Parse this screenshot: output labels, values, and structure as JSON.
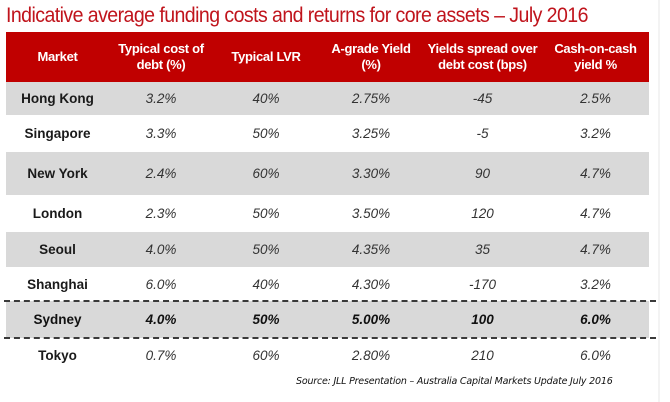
{
  "title": "Indicative average funding costs and returns for core assets – July 2016",
  "table": {
    "headers": [
      "Market",
      "Typical cost of debt (%)",
      "Typical LVR",
      "A-grade Yield (%)",
      "Yields spread over debt cost (bps)",
      "Cash-on-cash yield %"
    ],
    "rows": [
      {
        "market": "Hong Kong",
        "cost_of_debt": "3.2%",
        "lvr": "40%",
        "yield": "2.75%",
        "spread": "-45",
        "cash_on_cash": "2.5%"
      },
      {
        "market": "Singapore",
        "cost_of_debt": "3.3%",
        "lvr": "50%",
        "yield": "3.25%",
        "spread": "-5",
        "cash_on_cash": "3.2%"
      },
      {
        "market": "New York",
        "cost_of_debt": "2.4%",
        "lvr": "60%",
        "yield": "3.30%",
        "spread": "90",
        "cash_on_cash": "4.7%"
      },
      {
        "market": "London",
        "cost_of_debt": "2.3%",
        "lvr": "50%",
        "yield": "3.50%",
        "spread": "120",
        "cash_on_cash": "4.7%"
      },
      {
        "market": "Seoul",
        "cost_of_debt": "4.0%",
        "lvr": "50%",
        "yield": "4.35%",
        "spread": "35",
        "cash_on_cash": "4.7%"
      },
      {
        "market": "Shanghai",
        "cost_of_debt": "6.0%",
        "lvr": "40%",
        "yield": "4.30%",
        "spread": "-170",
        "cash_on_cash": "3.2%"
      },
      {
        "market": "Sydney",
        "cost_of_debt": "4.0%",
        "lvr": "50%",
        "yield": "5.00%",
        "spread": "100",
        "cash_on_cash": "6.0%",
        "highlighted": true
      },
      {
        "market": "Tokyo",
        "cost_of_debt": "0.7%",
        "lvr": "60%",
        "yield": "2.80%",
        "spread": "210",
        "cash_on_cash": "6.0%"
      }
    ]
  },
  "source": "Source: JLL Presentation – Australia Capital Markets Update July 2016",
  "colors": {
    "header_bg": "#c00000",
    "title_text": "#c0141c",
    "shaded_row": "#d9d9d9"
  }
}
